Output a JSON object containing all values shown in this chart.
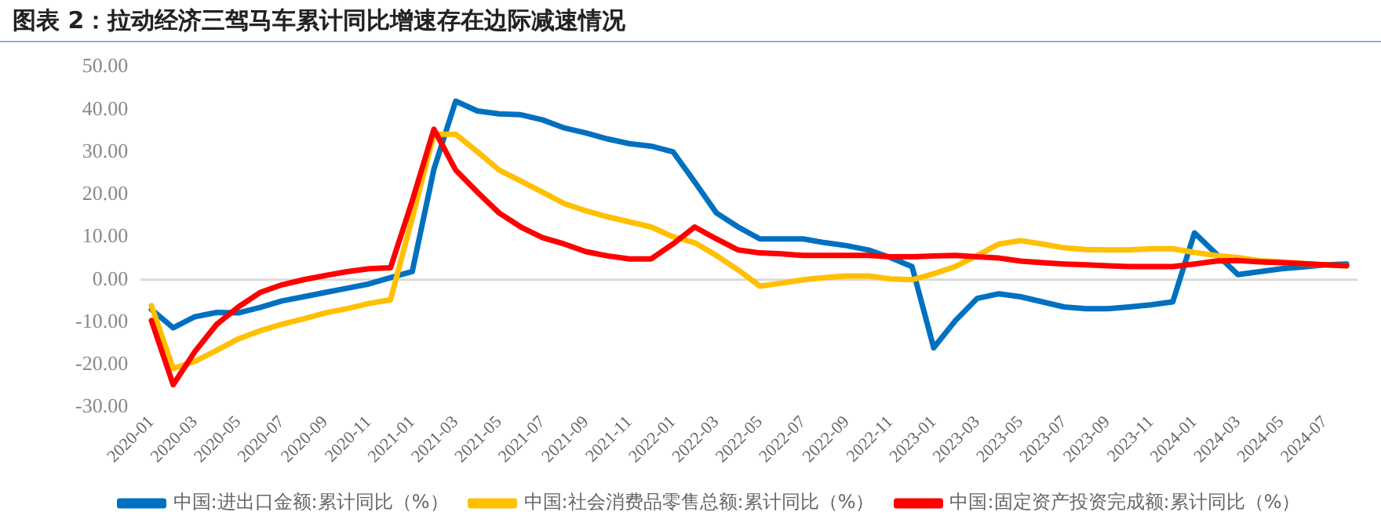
{
  "chart_data": {
    "type": "line",
    "title": "图表 2：拉动经济三驾马车累计同比增速存在边际减速情况",
    "categories": [
      "2020-01",
      null,
      "2020-03",
      null,
      "2020-05",
      null,
      "2020-07",
      null,
      "2020-09",
      null,
      "2020-11",
      null,
      "2021-01",
      null,
      "2021-03",
      null,
      "2021-05",
      null,
      "2021-07",
      null,
      "2021-09",
      null,
      "2021-11",
      null,
      "2022-01",
      null,
      "2022-03",
      null,
      "2022-05",
      null,
      "2022-07",
      null,
      "2022-09",
      null,
      "2022-11",
      null,
      "2023-01",
      null,
      "2023-03",
      null,
      "2023-05",
      null,
      "2023-07",
      null,
      "2023-09",
      null,
      "2023-11",
      null,
      "2024-01",
      null,
      "2024-03",
      null,
      "2024-05",
      null,
      "2024-07",
      null
    ],
    "series": [
      {
        "name": "中国:进出口金额:累计同比（%）",
        "color": "#0070c0",
        "values": [
          -7,
          -11.3,
          -8.7,
          -7.7,
          -7.8,
          -6.5,
          -5,
          -4,
          -3,
          -2,
          -1,
          0.5,
          1.9,
          26,
          42,
          39.7,
          39,
          38.8,
          37.6,
          35.7,
          34.5,
          33.1,
          32,
          31.4,
          30.1,
          23,
          15.7,
          12.4,
          9.6,
          9.6,
          9.6,
          8.7,
          8,
          7,
          5.2,
          3.1,
          -16,
          -9.6,
          -4.4,
          -3.3,
          -4,
          -5.2,
          -6.4,
          -6.8,
          -6.8,
          -6.4,
          -5.9,
          -5.2,
          11,
          6.1,
          1.2,
          1.9,
          2.6,
          3,
          3.5,
          3.7
        ]
      },
      {
        "name": "中国:社会消费品零售总额:累计同比（%）",
        "color": "#ffc000",
        "values": [
          -6.1,
          -20.9,
          -19.2,
          -16.6,
          -13.9,
          -12,
          -10.5,
          -9.2,
          -7.8,
          -6.8,
          -5.6,
          -4.7,
          14.5,
          34.2,
          34.2,
          30.1,
          25.8,
          23.2,
          20.6,
          17.9,
          16.2,
          14.8,
          13.6,
          12.4,
          10.1,
          8.7,
          5.7,
          2.3,
          -1.5,
          -0.8,
          0,
          0.5,
          0.9,
          0.9,
          0.2,
          0,
          1.4,
          3.1,
          5.7,
          8.4,
          9.2,
          8.4,
          7.5,
          7.1,
          7,
          7,
          7.3,
          7.3,
          6.4,
          5.7,
          5.2,
          4.5,
          4.2,
          3.8,
          3.5,
          3.3
        ]
      },
      {
        "name": "中国:固定资产投资完成额:累计同比（%）",
        "color": "#ff0000",
        "values": [
          -9.6,
          -24.7,
          -16.9,
          -10.5,
          -6.4,
          -3,
          -1.2,
          0,
          1,
          1.9,
          2.6,
          2.8,
          18.5,
          35.4,
          25.8,
          20.6,
          15.7,
          12.4,
          9.9,
          8.4,
          6.6,
          5.6,
          4.9,
          4.9,
          8.4,
          12.4,
          9.6,
          7,
          6.3,
          6.1,
          5.7,
          5.7,
          5.7,
          5.7,
          5.4,
          5.4,
          5.6,
          5.7,
          5.4,
          5.1,
          4.4,
          4,
          3.7,
          3.5,
          3.3,
          3.1,
          3.1,
          3.1,
          3.7,
          4.4,
          4.5,
          4.2,
          4,
          3.8,
          3.5,
          3.3
        ]
      }
    ],
    "ylim": [
      -30,
      50
    ],
    "yticks": [
      {
        "value": -30,
        "label": "-30.00"
      },
      {
        "value": -20,
        "label": "-20.00"
      },
      {
        "value": -10,
        "label": "-10.00"
      },
      {
        "value": 0,
        "label": "0.00"
      },
      {
        "value": 10,
        "label": "10.00"
      },
      {
        "value": 20,
        "label": "20.00"
      },
      {
        "value": 30,
        "label": "30.00"
      },
      {
        "value": 40,
        "label": "40.00"
      },
      {
        "value": 50,
        "label": "50.00"
      }
    ],
    "ref_lines": [
      {
        "axis": "y",
        "value": 0,
        "color": "#d9d9d9"
      }
    ],
    "grid": false,
    "legend": "bottom",
    "marker": "none",
    "line_style": "solid"
  }
}
